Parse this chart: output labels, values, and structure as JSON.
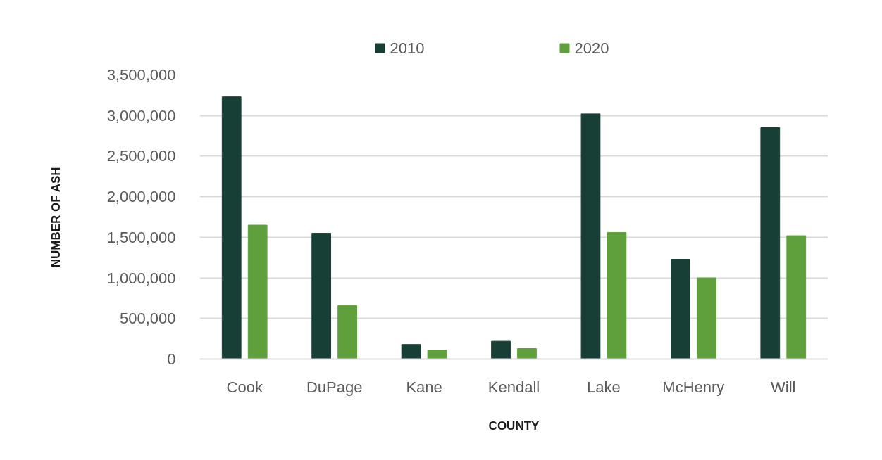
{
  "chart_data": {
    "type": "bar",
    "xlabel": "COUNTY",
    "ylabel": "NUMBER OF ASH",
    "categories": [
      "Cook",
      "DuPage",
      "Kane",
      "Kendall",
      "Lake",
      "McHenry",
      "Will"
    ],
    "series": [
      {
        "name": "2010",
        "color": "#183f35",
        "values": [
          3230000,
          1550000,
          180000,
          220000,
          3020000,
          1230000,
          2850000
        ]
      },
      {
        "name": "2020",
        "color": "#5fa03c",
        "values": [
          1650000,
          660000,
          110000,
          130000,
          1560000,
          1000000,
          1520000
        ]
      }
    ],
    "ylim": [
      0,
      3500000
    ],
    "yticks": [
      0,
      {
        "value": 500000,
        "label": "500,000"
      },
      {
        "value": 1000000,
        "label": "1,000,000"
      },
      {
        "value": 1500000,
        "label": "1,500,000"
      },
      {
        "value": 2000000,
        "label": "2,000,000"
      },
      {
        "value": 2500000,
        "label": "2,500,000"
      },
      {
        "value": 3000000,
        "label": "3,000,000"
      },
      {
        "value": 3500000,
        "label": "3,500,000"
      }
    ],
    "grid": "y",
    "legend": "top"
  }
}
